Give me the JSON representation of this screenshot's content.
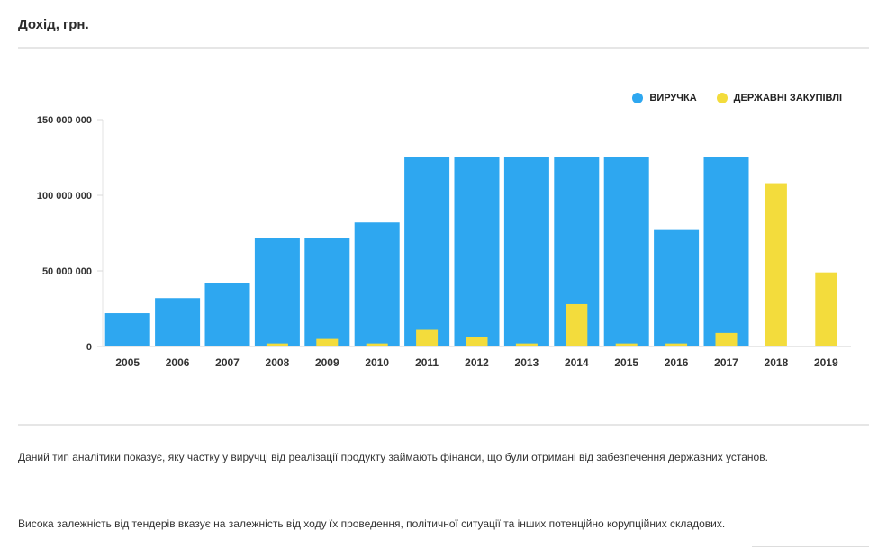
{
  "header": {
    "title": "Дохід, грн."
  },
  "legend": {
    "items": [
      {
        "label": "ВИРУЧКА",
        "color": "#2ea7f0"
      },
      {
        "label": "ДЕРЖАВНІ ЗАКУПІВЛІ",
        "color": "#f3dc3c"
      }
    ]
  },
  "chart_data": {
    "type": "bar",
    "title": "Дохід, грн.",
    "categories": [
      "2005",
      "2006",
      "2007",
      "2008",
      "2009",
      "2010",
      "2011",
      "2012",
      "2013",
      "2014",
      "2015",
      "2016",
      "2017",
      "2018",
      "2019"
    ],
    "series": [
      {
        "name": "ВИРУЧКА",
        "color": "#2ea7f0",
        "values": [
          22000000,
          32000000,
          42000000,
          72000000,
          72000000,
          82000000,
          125000000,
          125000000,
          125000000,
          125000000,
          125000000,
          77000000,
          125000000,
          0,
          0
        ]
      },
      {
        "name": "ДЕРЖАВНІ ЗАКУПІВЛІ",
        "color": "#f3dc3c",
        "values": [
          0,
          0,
          0,
          2000000,
          5000000,
          2000000,
          11000000,
          6500000,
          2000000,
          28000000,
          2000000,
          2000000,
          9000000,
          108000000,
          49000000
        ]
      }
    ],
    "ylim": [
      0,
      150000000
    ],
    "yticks": [
      0,
      50000000,
      100000000,
      150000000
    ],
    "ytick_labels": [
      "0",
      "50 000 000",
      "100 000 000",
      "150 000 000"
    ],
    "legend_position": "top-right",
    "xlabel": "",
    "ylabel": ""
  },
  "description": {
    "paragraph1": "Даний тип аналітики показує, яку частку у виручці від реалізації продукту займають фінанси, що були отримані від забезпечення державних установ.",
    "paragraph2": "Висока залежність від тендерів вказує на залежність від ходу їх проведення, політичної ситуації та інших потенційно корупційних складових."
  }
}
